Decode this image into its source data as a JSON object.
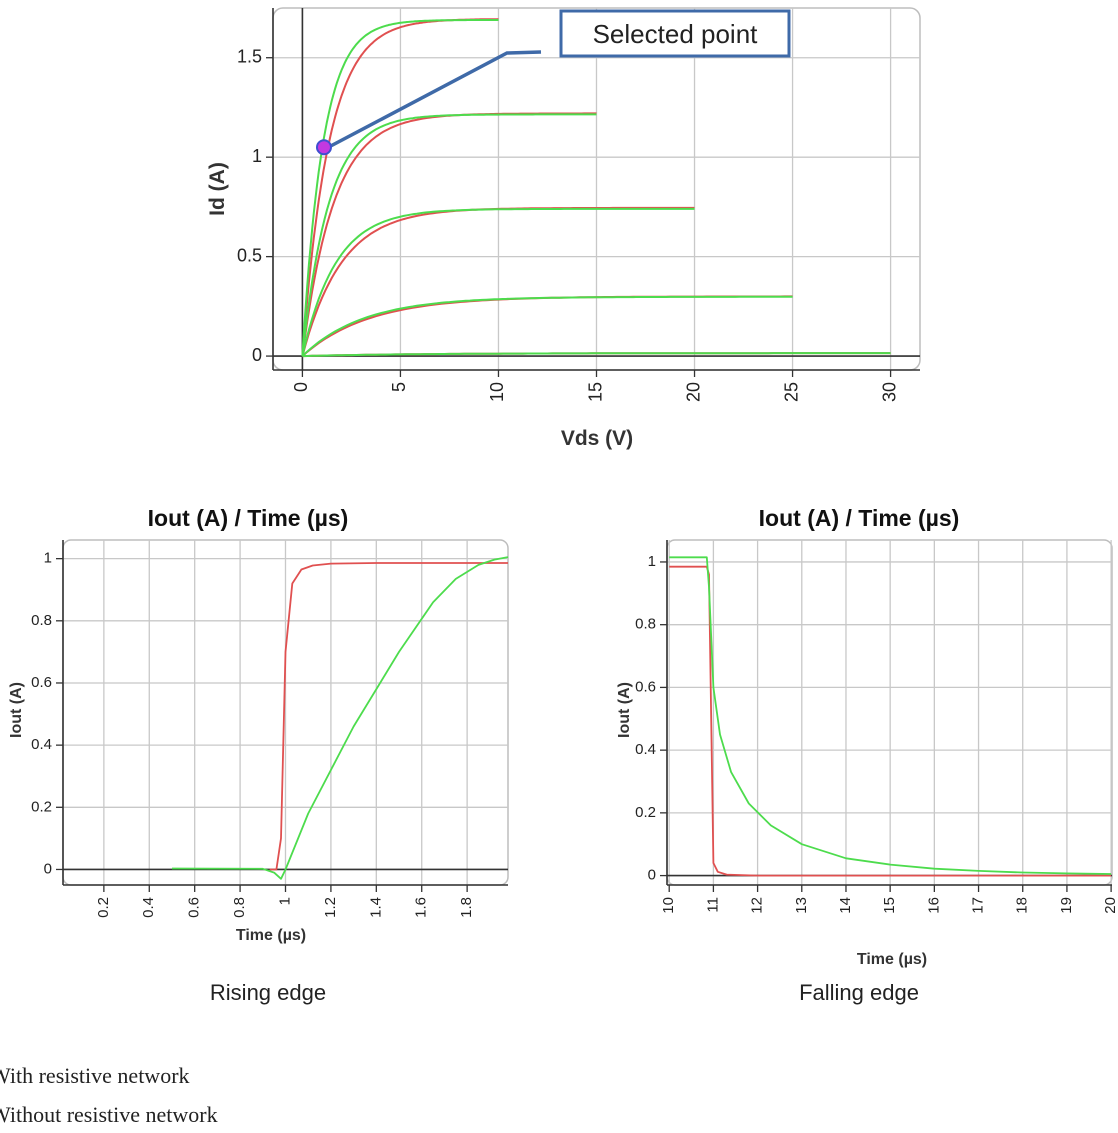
{
  "chart_data": [
    {
      "type": "line",
      "xlabel": "Vds (V)",
      "ylabel": "Id (A)",
      "xlim": [
        -1.5,
        31.5
      ],
      "ylim": [
        -0.07,
        1.75
      ],
      "xticks": [
        "0",
        "5",
        "10",
        "15",
        "20",
        "25",
        "30"
      ],
      "yticks": [
        "0",
        "0.5",
        "1",
        "1.5"
      ],
      "grid": true,
      "annotation": {
        "text": "Selected point",
        "point": {
          "x": 1.1,
          "y": 1.05
        }
      },
      "series": [
        {
          "color": "#e05050",
          "curves": [
            {
              "vmax": 10,
              "sat": 1.695,
              "tau": 1.35
            },
            {
              "vmax": 15,
              "sat": 1.22,
              "tau": 1.6
            },
            {
              "vmax": 20,
              "sat": 0.745,
              "tau": 2.0
            },
            {
              "vmax": 25,
              "sat": 0.3,
              "tau": 3.4
            },
            {
              "vmax": 30,
              "sat": 0.015,
              "tau": 6.0
            }
          ]
        },
        {
          "color": "#4ddc4d",
          "curves": [
            {
              "vmax": 10,
              "sat": 1.69,
              "tau": 1.05
            },
            {
              "vmax": 15,
              "sat": 1.215,
              "tau": 1.35
            },
            {
              "vmax": 20,
              "sat": 0.74,
              "tau": 1.7
            },
            {
              "vmax": 25,
              "sat": 0.298,
              "tau": 3.1
            },
            {
              "vmax": 30,
              "sat": 0.015,
              "tau": 6.0
            }
          ]
        }
      ]
    },
    {
      "type": "line",
      "title": "Iout (A) / Time (µs)",
      "xlabel": "Time (µs)",
      "ylabel": "Iout (A)",
      "xlim": [
        0.02,
        1.98
      ],
      "ylim": [
        -0.05,
        1.06
      ],
      "xticks": [
        "0.2",
        "0.4",
        "0.6",
        "0.8",
        "1",
        "1.2",
        "1.4",
        "1.6",
        "1.8"
      ],
      "yticks": [
        "0",
        "0.2",
        "0.4",
        "0.6",
        "0.8",
        "1"
      ],
      "grid": true,
      "caption": "Rising edge",
      "series": [
        {
          "color": "#e05050",
          "x": [
            0.93,
            0.96,
            0.98,
            1.0,
            1.03,
            1.07,
            1.12,
            1.2,
            1.4,
            1.7,
            1.98
          ],
          "y": [
            0,
            0,
            0.1,
            0.7,
            0.92,
            0.965,
            0.978,
            0.984,
            0.986,
            0.986,
            0.986
          ]
        },
        {
          "color": "#4ddc4d",
          "x": [
            0.5,
            0.9,
            0.95,
            0.98,
            1.0,
            1.1,
            1.3,
            1.5,
            1.65,
            1.75,
            1.85,
            1.92,
            1.98
          ],
          "y": [
            0.003,
            0.002,
            -0.01,
            -0.03,
            0.0,
            0.18,
            0.46,
            0.7,
            0.86,
            0.935,
            0.98,
            0.997,
            1.005
          ]
        }
      ]
    },
    {
      "type": "line",
      "title": "Iout (A) / Time (µs)",
      "xlabel": "Time (µs)",
      "ylabel": "Iout (A)",
      "xlim": [
        9.95,
        20.02
      ],
      "ylim": [
        -0.03,
        1.07
      ],
      "xticks": [
        "10",
        "11",
        "12",
        "13",
        "14",
        "15",
        "16",
        "17",
        "18",
        "19",
        "20"
      ],
      "yticks": [
        "0",
        "0.2",
        "0.4",
        "0.6",
        "0.8",
        "1"
      ],
      "grid": true,
      "caption": "Falling edge",
      "series": [
        {
          "color": "#e05050",
          "x": [
            10,
            10.85,
            10.9,
            10.95,
            11.0,
            11.1,
            11.3,
            12,
            20
          ],
          "y": [
            0.985,
            0.985,
            0.96,
            0.5,
            0.04,
            0.012,
            0.003,
            0,
            0
          ]
        },
        {
          "color": "#4ddc4d",
          "x": [
            10,
            10.85,
            10.9,
            11.0,
            11.15,
            11.4,
            11.8,
            12.3,
            13,
            14,
            15,
            16,
            17,
            18,
            19,
            20
          ],
          "y": [
            1.015,
            1.015,
            0.92,
            0.6,
            0.45,
            0.33,
            0.23,
            0.16,
            0.1,
            0.055,
            0.035,
            0.022,
            0.015,
            0.01,
            0.007,
            0.005
          ]
        }
      ]
    }
  ],
  "legend": [
    {
      "label": "With resistive network",
      "color": "#e05050"
    },
    {
      "label": "Without resistive network",
      "color": "#4ddc4d"
    }
  ]
}
